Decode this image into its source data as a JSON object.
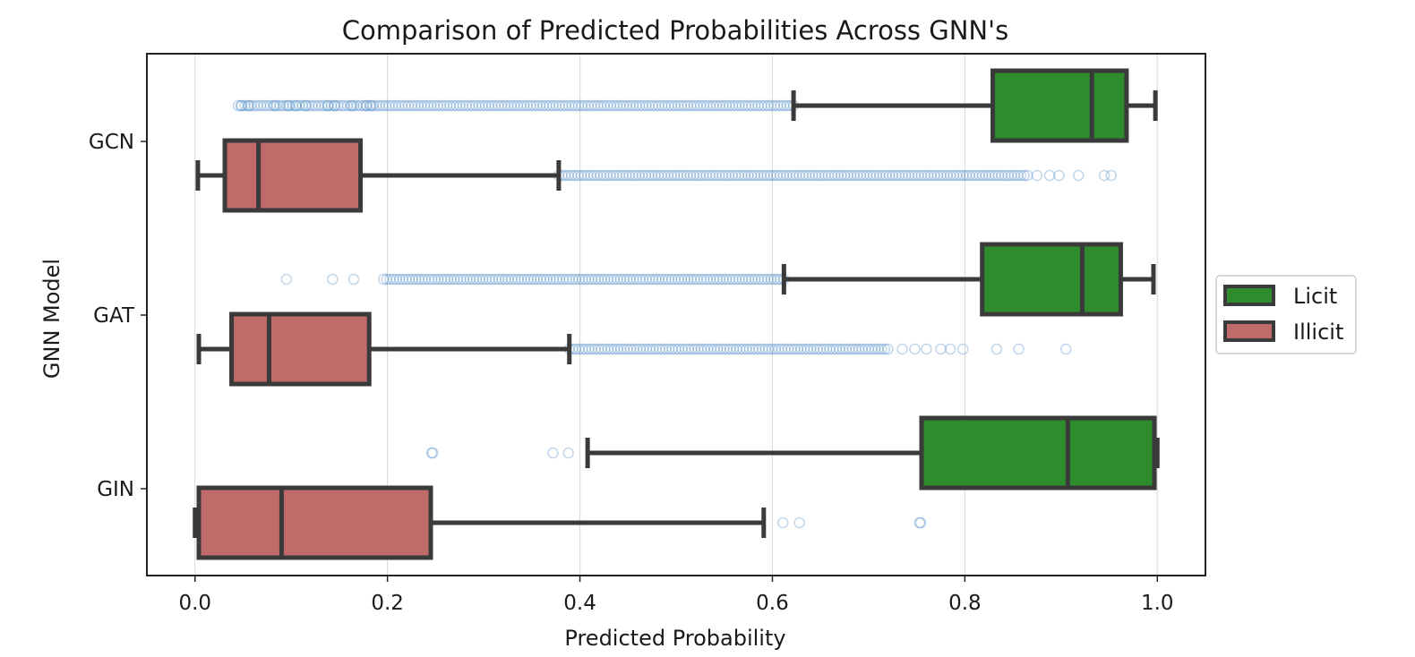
{
  "chart_data": {
    "type": "boxplot",
    "orientation": "horizontal",
    "title": "Comparison of Predicted Probabilities Across GNN's",
    "xlabel": "Predicted Probability",
    "ylabel": "GNN Model",
    "xlim": [
      -0.05,
      1.05
    ],
    "xticks": [
      0.0,
      0.2,
      0.4,
      0.6,
      0.8,
      1.0
    ],
    "xtick_labels": [
      "0.0",
      "0.2",
      "0.4",
      "0.6",
      "0.8",
      "1.0"
    ],
    "grid": "x",
    "legend_position": "right",
    "categories": [
      "GCN",
      "GAT",
      "GIN"
    ],
    "series": [
      {
        "name": "Licit",
        "color": "#2e8b2e",
        "boxes": [
          {
            "category": "GCN",
            "whislo": 0.622,
            "q1": 0.829,
            "med": 0.932,
            "q3": 0.968,
            "whishi": 0.998,
            "outlier_range": [
              0.045,
              0.622
            ],
            "outliers": [
              0.048,
              0.056,
              0.083,
              0.097,
              0.105,
              0.115,
              0.138,
              0.145,
              0.163,
              0.178,
              0.183
            ]
          },
          {
            "category": "GAT",
            "whislo": 0.612,
            "q1": 0.818,
            "med": 0.922,
            "q3": 0.962,
            "whishi": 0.996,
            "outlier_range": [
              0.196,
              0.612
            ],
            "outliers": [
              0.095,
              0.143,
              0.165
            ]
          },
          {
            "category": "GIN",
            "whislo": 0.408,
            "q1": 0.755,
            "med": 0.907,
            "q3": 0.997,
            "whishi": 1.0,
            "outliers": [
              0.246,
              0.247,
              0.372,
              0.388
            ]
          }
        ]
      },
      {
        "name": "Illicit",
        "color": "#c06a6a",
        "boxes": [
          {
            "category": "GCN",
            "whislo": 0.003,
            "q1": 0.031,
            "med": 0.066,
            "q3": 0.172,
            "whishi": 0.378,
            "outlier_range": [
              0.378,
              0.865
            ],
            "outliers": [
              0.875,
              0.888,
              0.898,
              0.918,
              0.945,
              0.952
            ]
          },
          {
            "category": "GAT",
            "whislo": 0.004,
            "q1": 0.038,
            "med": 0.077,
            "q3": 0.181,
            "whishi": 0.389,
            "outlier_range": [
              0.389,
              0.72
            ],
            "outliers": [
              0.735,
              0.748,
              0.76,
              0.775,
              0.785,
              0.798,
              0.833,
              0.856,
              0.905
            ]
          },
          {
            "category": "GIN",
            "whislo": 0.0,
            "q1": 0.004,
            "med": 0.09,
            "q3": 0.245,
            "whishi": 0.591,
            "outliers": [
              0.611,
              0.628,
              0.753,
              0.754
            ]
          }
        ]
      }
    ]
  }
}
